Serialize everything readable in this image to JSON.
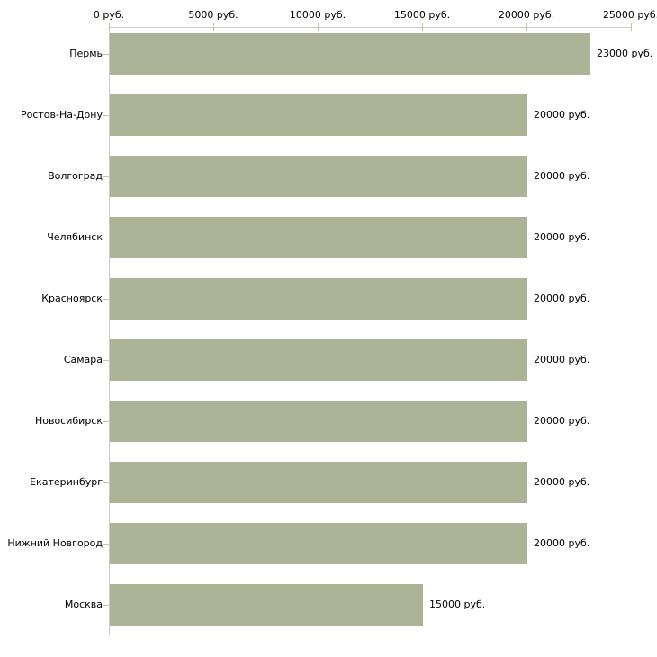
{
  "chart_data": {
    "type": "bar",
    "orientation": "horizontal",
    "title": "",
    "xlabel": "",
    "ylabel": "",
    "categories": [
      "Пермь",
      "Ростов-На-Дону",
      "Волгоград",
      "Челябинск",
      "Красноярск",
      "Самара",
      "Новосибирск",
      "Екатеринбург",
      "Нижний Новгород",
      "Москва"
    ],
    "values": [
      23000,
      20000,
      20000,
      20000,
      20000,
      20000,
      20000,
      20000,
      20000,
      15000
    ],
    "value_labels": [
      "23000 руб.",
      "20000 руб.",
      "20000 руб.",
      "20000 руб.",
      "20000 руб.",
      "20000 руб.",
      "20000 руб.",
      "20000 руб.",
      "20000 руб.",
      "15000 руб."
    ],
    "x_ticks": [
      0,
      5000,
      10000,
      15000,
      20000,
      25000
    ],
    "x_tick_labels": [
      "0 руб.",
      "5000 руб.",
      "10000 руб.",
      "15000 руб.",
      "20000 руб.",
      "25000 руб."
    ],
    "xlim": [
      0,
      25000
    ],
    "grid": false,
    "legend": null,
    "unit": "руб.",
    "colors": {
      "bar_fill": "#adb396",
      "axis_line": "#cbcbcb",
      "tick_mark": "#c6c39b",
      "text": "#000000",
      "background": "#ffffff"
    }
  }
}
